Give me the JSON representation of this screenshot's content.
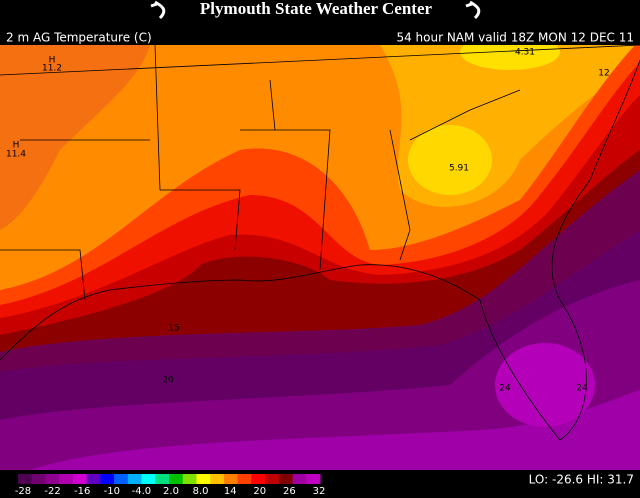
{
  "header": {
    "title": "Plymouth State Weather Center"
  },
  "map": {
    "field": "2 m AG Temperature (C)",
    "valid": "54 hour NAM valid 18Z MON 12 DEC 11",
    "labels": [
      "H",
      "11.2",
      "H",
      "11.4",
      "4.31",
      "12",
      "5.91",
      "15",
      "20",
      "24",
      "24"
    ]
  },
  "colorbar": {
    "labels": [
      "-28",
      "-22",
      "-16",
      "-10",
      "-4.0",
      "2.0",
      "8.0",
      "14",
      "20",
      "26",
      "32"
    ]
  },
  "extremes": "LO: -26.6  HI: 31.7"
}
